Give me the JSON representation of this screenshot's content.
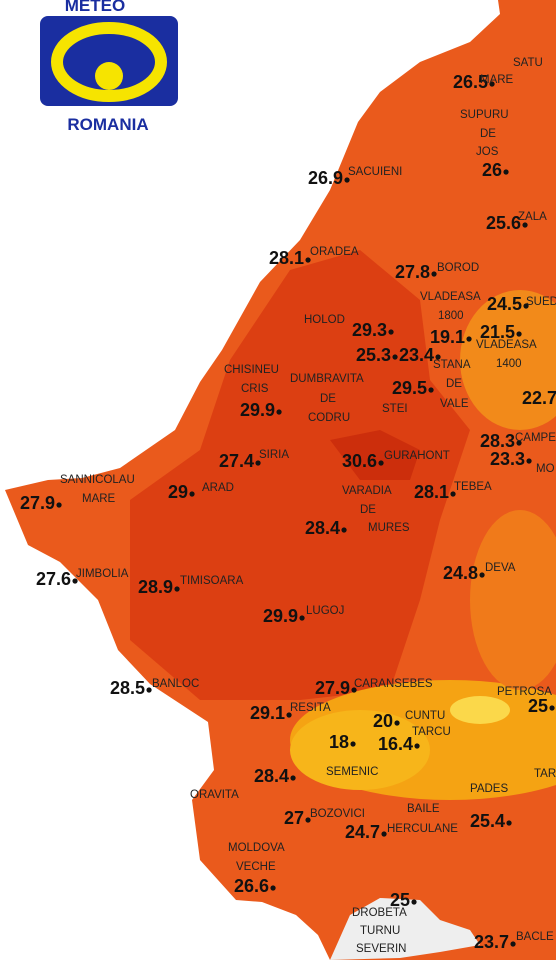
{
  "logo": {
    "top": "METEO",
    "bottom": "ROMANIA"
  },
  "stations": [
    {
      "value": 26.5,
      "name": [
        "SATU",
        "MARE"
      ]
    },
    {
      "value": 26,
      "name": [
        "SUPURU",
        "DE",
        "JOS"
      ]
    },
    {
      "value": 26.9,
      "name": [
        "SACUIENI"
      ]
    },
    {
      "value": 25.6,
      "name": [
        "ZALA"
      ]
    },
    {
      "value": 28.1,
      "name": [
        "ORADEA"
      ]
    },
    {
      "value": 27.8,
      "name": [
        "BOROD"
      ]
    },
    {
      "value": 24.5,
      "name": [
        "VLADEASA",
        "1800"
      ]
    },
    {
      "value": 29.3,
      "name": [
        "HOLOD"
      ]
    },
    {
      "value": 19.1,
      "name": [
        "STANA",
        "DE",
        "VALE"
      ]
    },
    {
      "value": 21.5,
      "name": [
        "VLADEASA",
        "1400"
      ]
    },
    {
      "value": 25.3,
      "name": [
        "DUMBRAVITA",
        "DE",
        "CODRU"
      ]
    },
    {
      "value": 23.4,
      "name": []
    },
    {
      "value": 29.5,
      "name": [
        "STEI"
      ]
    },
    {
      "value": 29.9,
      "name": [
        "CHISINEU",
        "CRIS"
      ]
    },
    {
      "value": 22.7,
      "name": []
    },
    {
      "value": 28.3,
      "name": [
        "CAMPE"
      ]
    },
    {
      "value": 23.3,
      "name": [
        "MO"
      ]
    },
    {
      "value": 27.4,
      "name": [
        "SIRIA"
      ]
    },
    {
      "value": 30.6,
      "name": [
        "GURAHONT"
      ]
    },
    {
      "value": 27.9,
      "name": [
        "SANNICOLAU",
        "MARE"
      ]
    },
    {
      "value": 29,
      "name": [
        "ARAD"
      ]
    },
    {
      "value": 28.4,
      "name": [
        "VARADIA",
        "DE",
        "MURES"
      ]
    },
    {
      "value": 28.1,
      "name": [
        "TEBEA"
      ]
    },
    {
      "value": 27.6,
      "name": [
        "JIMBOLIA"
      ]
    },
    {
      "value": 28.9,
      "name": [
        "TIMISOARA"
      ]
    },
    {
      "value": 24.8,
      "name": [
        "DEVA"
      ]
    },
    {
      "value": 29.9,
      "name": [
        "LUGOJ"
      ]
    },
    {
      "value": 28.5,
      "name": [
        "BANLOC"
      ]
    },
    {
      "value": 27.9,
      "name": [
        "CARANSEBES"
      ]
    },
    {
      "value": 25,
      "name": [
        "PETROSA"
      ]
    },
    {
      "value": 29.1,
      "name": [
        "RESITA"
      ]
    },
    {
      "value": 20,
      "name": [
        "CUNTU"
      ]
    },
    {
      "value": 16.4,
      "name": [
        "TARCU"
      ]
    },
    {
      "value": 18,
      "name": [
        "SEMENIC"
      ]
    },
    {
      "value": 28.4,
      "name": [
        "ORAVITA"
      ]
    },
    {
      "value": 25.4,
      "name": [
        "PADES"
      ]
    },
    {
      "value": 27,
      "name": [
        "BOZOVICI"
      ]
    },
    {
      "value": 24.7,
      "name": [
        "BAILE",
        "HERCULANE"
      ]
    },
    {
      "value": 26.6,
      "name": [
        "MOLDOVA",
        "VECHE"
      ]
    },
    {
      "value": 25,
      "name": [
        "DROBETA",
        "TURNU",
        "SEVERIN"
      ]
    },
    {
      "value": 23.7,
      "name": [
        "BACLE"
      ]
    },
    {
      "name": [
        "SUED"
      ]
    },
    {
      "name": [
        "TAR"
      ]
    }
  ]
}
